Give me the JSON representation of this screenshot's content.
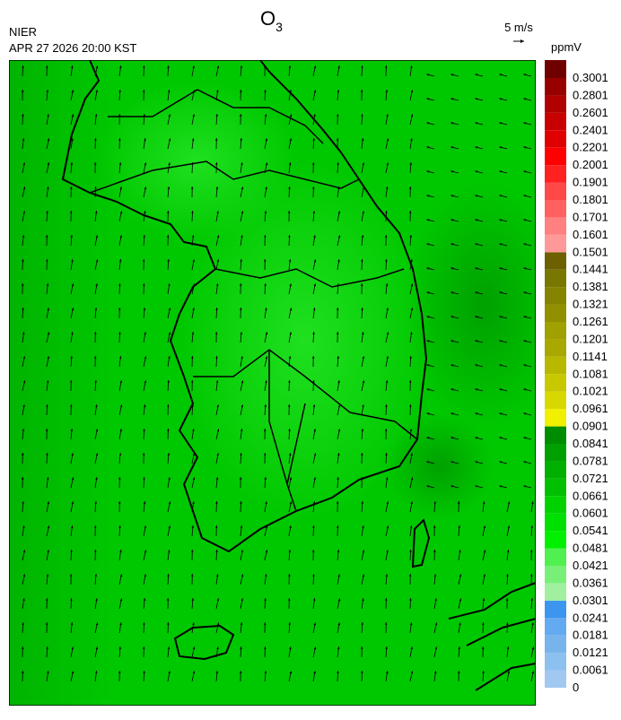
{
  "header": {
    "agency": "NIER",
    "datetime": "APR 27 2026 20:00 KST",
    "title": {
      "text": "O",
      "subscript": "3"
    }
  },
  "wind_legend": {
    "label": "5 m/s"
  },
  "colorbar": {
    "unit": "ppmV",
    "labels": [
      "0",
      "0.0061",
      "0.0121",
      "0.0181",
      "0.0241",
      "0.0301",
      "0.0361",
      "0.0421",
      "0.0481",
      "0.0541",
      "0.0601",
      "0.0661",
      "0.0721",
      "0.0781",
      "0.0841",
      "0.0901",
      "0.0961",
      "0.1021",
      "0.1081",
      "0.1141",
      "0.1201",
      "0.1261",
      "0.1321",
      "0.1381",
      "0.1441",
      "0.1501",
      "0.1601",
      "0.1701",
      "0.1801",
      "0.1901",
      "0.2001",
      "0.2201",
      "0.2401",
      "0.2601",
      "0.2801",
      "0.3001"
    ],
    "colors": [
      "#a0c8f0",
      "#8cc0ee",
      "#78b4ec",
      "#64aaf0",
      "#3c96f0",
      "#a0f0a0",
      "#78f078",
      "#50f050",
      "#00f000",
      "#00e000",
      "#00d200",
      "#00c000",
      "#00b000",
      "#00a000",
      "#008c00",
      "#f0f000",
      "#d8d800",
      "#c8c800",
      "#b8b800",
      "#a8a800",
      "#a0a000",
      "#909000",
      "#848400",
      "#787800",
      "#6c6000",
      "#ff9898",
      "#ff8080",
      "#ff6060",
      "#ff4848",
      "#ff2020",
      "#ff0000",
      "#e00000",
      "#c80000",
      "#b00000",
      "#980000",
      "#700000"
    ]
  }
}
